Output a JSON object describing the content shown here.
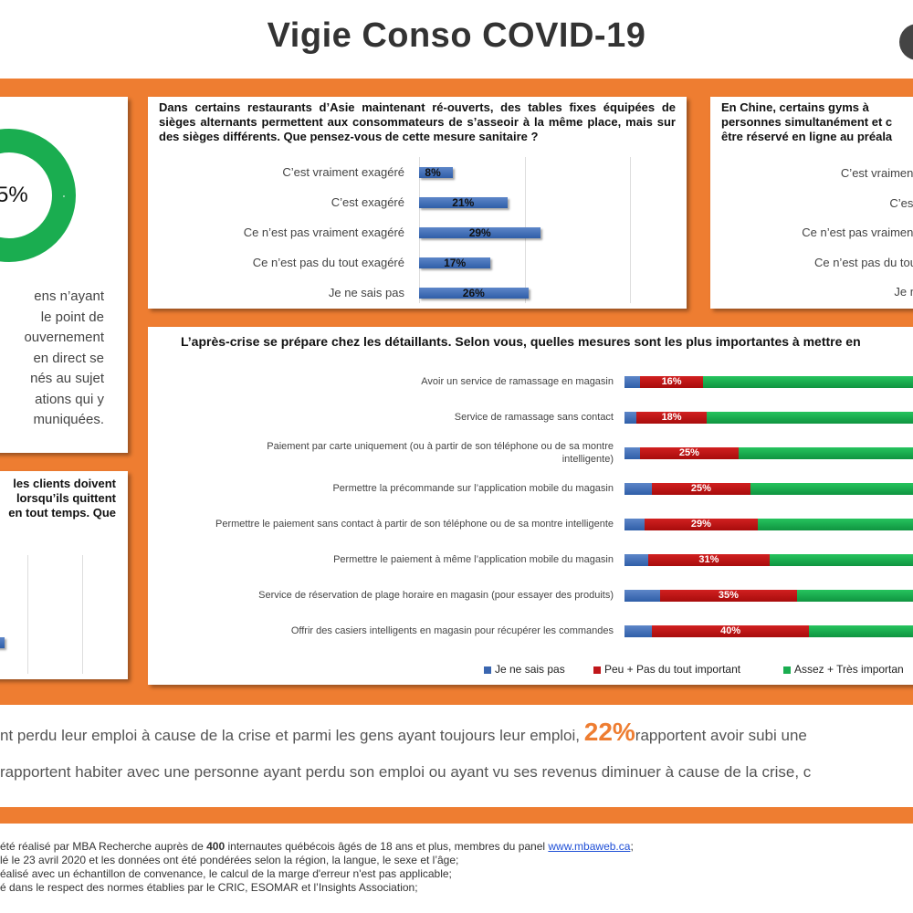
{
  "header": {
    "title": "Vigie Conso COVID-19"
  },
  "panel_left_top": {
    "donut_label": "5%",
    "text_lines": [
      "ens n’ayant",
      "le point de",
      "ouvernement",
      "en direct se",
      "nés au sujet",
      "ations qui y",
      "muniquées."
    ]
  },
  "panel_left_bottom": {
    "question_lines": [
      "les clients doivent",
      "lorsqu’ils quittent",
      "en tout temps. Que"
    ]
  },
  "panel_top_right": {
    "question_lines": [
      "En Chine, certains gyms à",
      "personnes simultanément et c",
      "être réservé en ligne au préala"
    ],
    "labels": [
      "C’est vraiment",
      "C’est",
      "Ce n’est pas vraiment",
      "Ce n’est pas du tou",
      "Je n"
    ]
  },
  "chart_data": [
    {
      "type": "bar",
      "title": "Dans certains restaurants d’Asie maintenant ré-ouverts, des tables fixes équipées de sièges alternants permettent aux consommateurs de s’asseoir à la même place, mais sur des sièges différents. Que pensez-vous de cette mesure sanitaire ?",
      "categories": [
        "C’est vraiment exagéré",
        "C’est exagéré",
        "Ce n’est pas vraiment exagéré",
        "Ce n’est pas du tout exagéré",
        "Je ne sais pas"
      ],
      "values": [
        8,
        21,
        29,
        17,
        26
      ],
      "value_labels": [
        "8%",
        "21%",
        "29%",
        "17%",
        "26%"
      ],
      "orientation": "horizontal",
      "color": "#3a66b0"
    },
    {
      "type": "bar",
      "stacked": true,
      "orientation": "horizontal",
      "title": "L’après-crise se prépare chez les détaillants. Selon vous, quelles mesures sont les plus importantes à mettre en",
      "categories": [
        "Avoir un service de ramassage en magasin",
        "Service de ramassage sans contact",
        "Paiement par carte uniquement (ou à partir de son téléphone ou de sa montre intelligente)",
        "Permettre la précommande sur l’application mobile du magasin",
        "Permettre le paiement sans contact à partir de son téléphone ou de sa montre intelligente",
        "Permettre le paiement à même l’application mobile du magasin",
        "Service de réservation de plage horaire en magasin (pour essayer des produits)",
        "Offrir des casiers intelligents en magasin pour récupérer les commandes"
      ],
      "category_lines": [
        [
          "Avoir un service de ramassage en magasin"
        ],
        [
          "Service de ramassage sans contact"
        ],
        [
          "Paiement par carte uniquement (ou à partir de son téléphone ou de sa montre",
          "intelligente)"
        ],
        [
          "Permettre la précommande sur l’application mobile du magasin"
        ],
        [
          "Permettre le paiement sans contact à partir de son téléphone ou de sa montre intelligente"
        ],
        [
          "Permettre le paiement à même l’application mobile du magasin"
        ],
        [
          "Service de réservation de plage horaire en magasin (pour essayer des produits)"
        ],
        [
          "Offrir des casiers intelligents en magasin pour récupérer les commandes"
        ]
      ],
      "series": [
        {
          "name": "Je ne sais pas",
          "color": "#3a66b0",
          "values": [
            4,
            3,
            4,
            7,
            5,
            6,
            9,
            7
          ]
        },
        {
          "name": "Peu + Pas du tout important",
          "color": "#c0161a",
          "values": [
            16,
            18,
            25,
            25,
            29,
            31,
            35,
            40
          ],
          "value_labels": [
            "16%",
            "18%",
            "25%",
            "25%",
            "29%",
            "31%",
            "35%",
            "40%"
          ]
        },
        {
          "name": "Assez + Très importan",
          "color": "#1aad50",
          "values": [
            80,
            79,
            71,
            68,
            66,
            63,
            56,
            53
          ]
        }
      ],
      "legend": "bottom"
    }
  ],
  "stats": {
    "line1_pre": "nt perdu leur emploi à cause de la crise et parmi les gens ayant toujours leur emploi,",
    "line1_big": "22%",
    "line1_post": "rapportent avoir subi une",
    "line2": "rapportent habiter avec une personne ayant perdu son emploi ou ayant vu ses revenus diminuer à cause de la crise, c"
  },
  "footer": {
    "line1_pre": "été réalisé par MBA Recherche auprès de ",
    "line1_bold": "400",
    "line1_mid": " internautes québécois âgés de 18 ans et plus, membres du panel ",
    "line1_link": "www.mbaweb.ca",
    "line1_post": ";",
    "line2": "lé le 23 avril 2020 et les données ont été pondérées selon la région, la langue, le sexe et l’âge;",
    "line3": "éalisé avec un échantillon de convenance, le calcul de la marge d'erreur n'est pas applicable;",
    "line4": "é dans le respect des normes établies par le CRIC, ESOMAR et l’Insights Association;"
  }
}
